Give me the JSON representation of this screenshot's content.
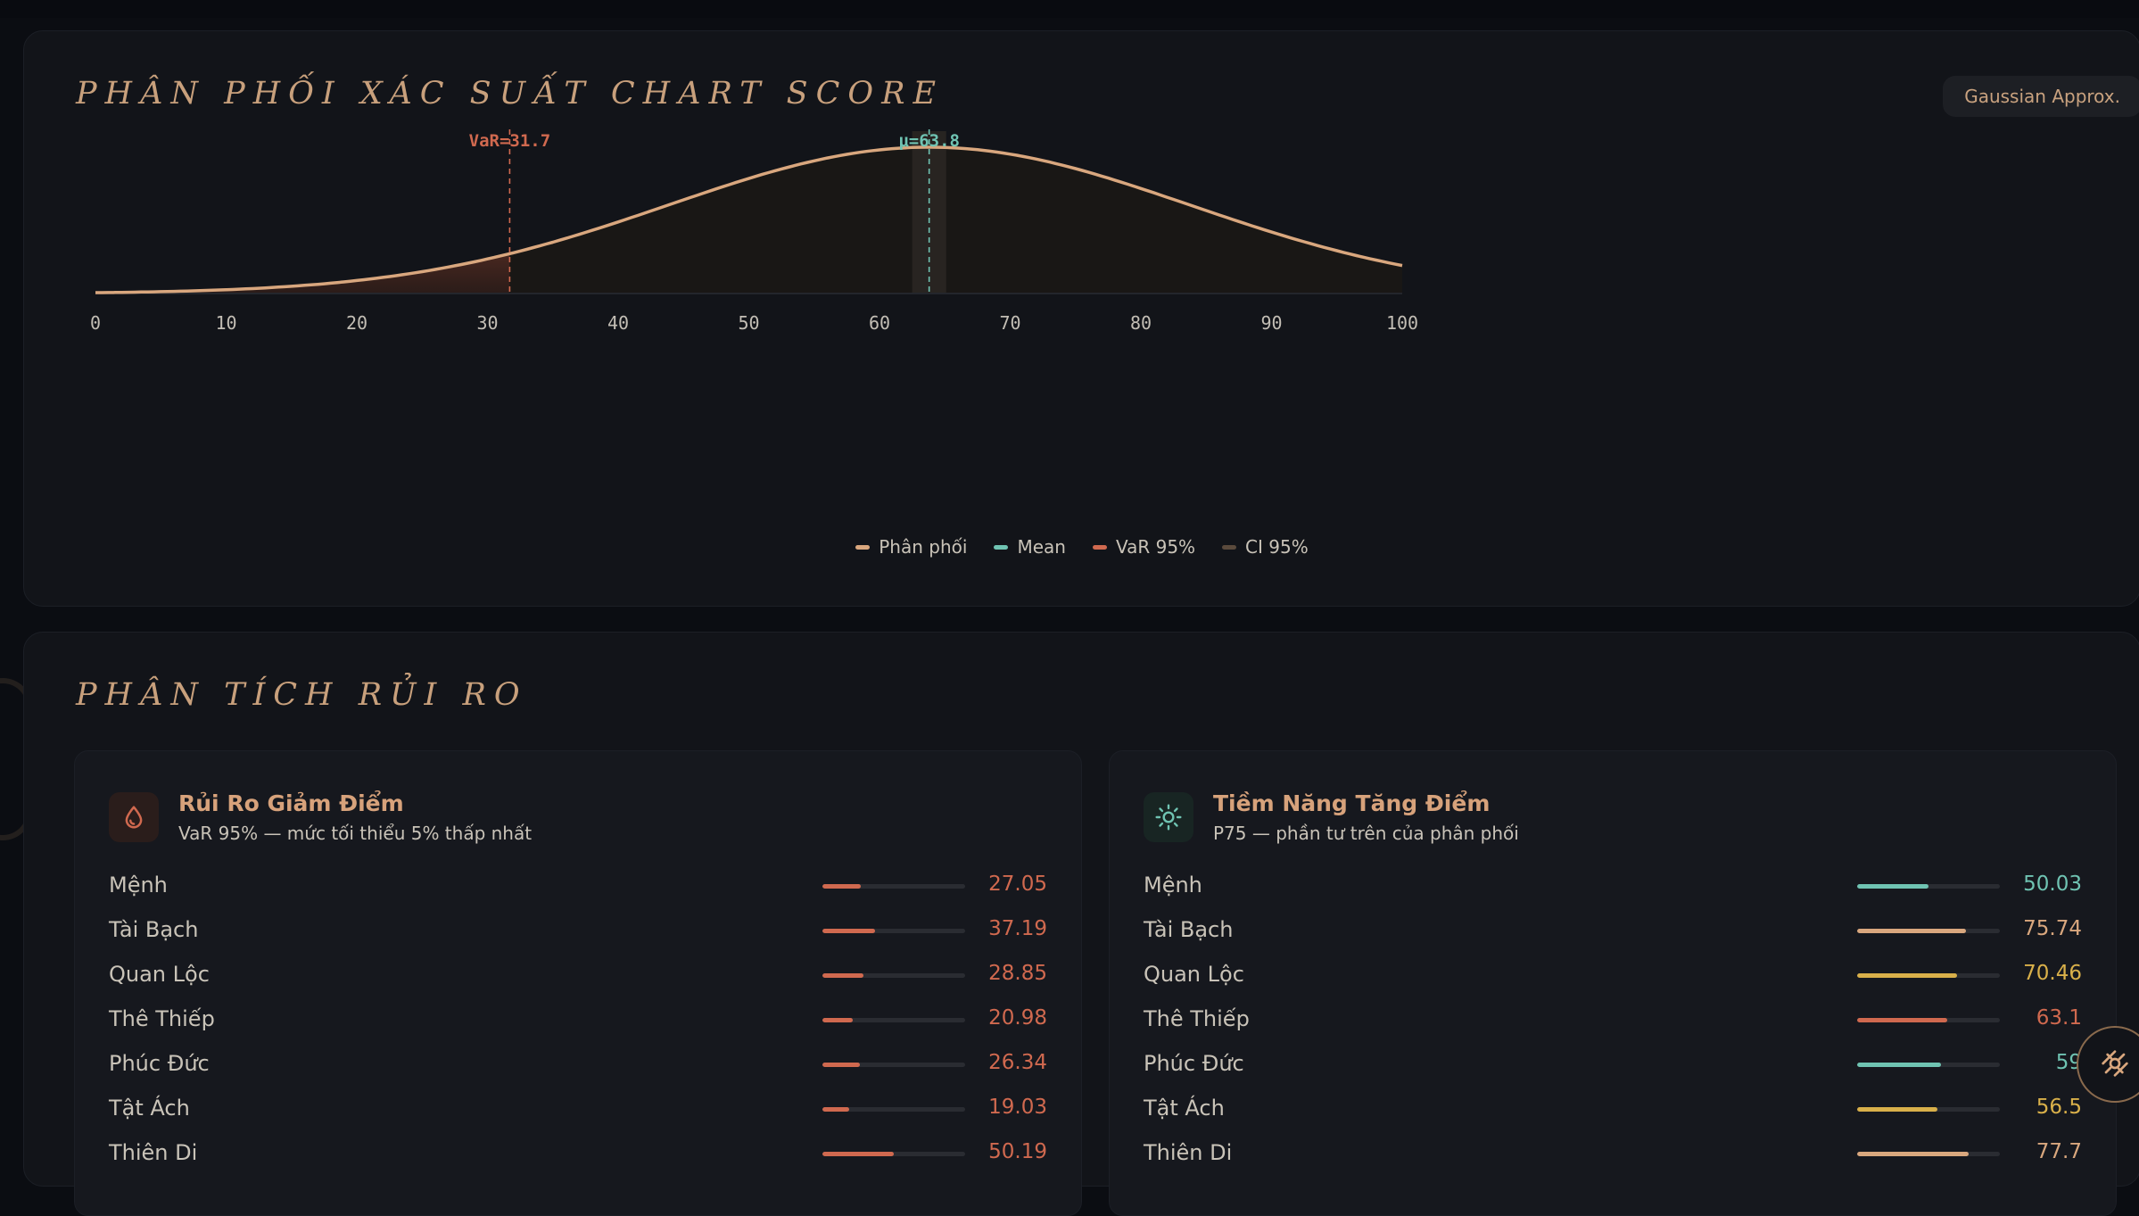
{
  "distribution": {
    "title": "PHÂN PHỐI XÁC SUẤT CHART SCORE",
    "badge": "Gaussian Approx.",
    "markers": {
      "var_label": "VaR=31.7",
      "mean_label": "μ=63.8"
    },
    "legend": [
      {
        "label": "Phân phối",
        "color": "#d9a77e"
      },
      {
        "label": "Mean",
        "color": "#6fc3b2"
      },
      {
        "label": "VaR 95%",
        "color": "#d0694f"
      },
      {
        "label": "CI 95%",
        "color": "#5a4a3c"
      }
    ],
    "colors": {
      "curve": "#d9a77e",
      "mean": "#6fc3b2",
      "var": "#d0694f",
      "ci": "#2a2622"
    }
  },
  "chart_data": {
    "type": "area",
    "x_ticks": [
      "0",
      "10",
      "20",
      "30",
      "40",
      "50",
      "60",
      "70",
      "80",
      "90",
      "100"
    ],
    "xlim": [
      0,
      100
    ],
    "mean": 63.8,
    "std": 19.9,
    "var95": 31.7,
    "ci95": [
      62.5,
      65.1
    ],
    "legend_position": "bottom-center",
    "grid": false
  },
  "risk": {
    "title": "PHÂN TÍCH RỦI RO",
    "downside": {
      "title": "Rủi Ro Giảm Điểm",
      "subtitle": "VaR 95% — mức tối thiểu 5% thấp nhất",
      "icon": "drop-icon",
      "rows": [
        {
          "label": "Mệnh",
          "value": "27.05",
          "level": 0.27,
          "color": "#d0694f"
        },
        {
          "label": "Tài Bạch",
          "value": "37.19",
          "level": 0.37,
          "color": "#d0694f"
        },
        {
          "label": "Quan Lộc",
          "value": "28.85",
          "level": 0.29,
          "color": "#d0694f"
        },
        {
          "label": "Thê Thiếp",
          "value": "20.98",
          "level": 0.21,
          "color": "#d0694f"
        },
        {
          "label": "Phúc Đức",
          "value": "26.34",
          "level": 0.26,
          "color": "#d0694f"
        },
        {
          "label": "Tật Ách",
          "value": "19.03",
          "level": 0.19,
          "color": "#d0694f"
        },
        {
          "label": "Thiên Di",
          "value": "50.19",
          "level": 0.5,
          "color": "#d0694f"
        }
      ]
    },
    "upside": {
      "title": "Tiềm Năng Tăng Điểm",
      "subtitle": "P75 — phần tư trên của phân phối",
      "icon": "sun-icon",
      "rows": [
        {
          "label": "Mệnh",
          "value": "50.03",
          "level": 0.5,
          "color": "#6fc3b2"
        },
        {
          "label": "Tài Bạch",
          "value": "75.74",
          "level": 0.76,
          "color": "#d9a77e"
        },
        {
          "label": "Quan Lộc",
          "value": "70.46",
          "level": 0.7,
          "color": "#d9b04a"
        },
        {
          "label": "Thê Thiếp",
          "value": "63.1",
          "level": 0.63,
          "color": "#d0694f"
        },
        {
          "label": "Phúc Đức",
          "value": "59",
          "level": 0.59,
          "color": "#6fc3b2"
        },
        {
          "label": "Tật Ách",
          "value": "56.5",
          "level": 0.56,
          "color": "#d9b04a"
        },
        {
          "label": "Thiên Di",
          "value": "77.7",
          "level": 0.78,
          "color": "#d9a77e"
        }
      ]
    }
  },
  "fab": {
    "icon": "sparkle-icon"
  }
}
